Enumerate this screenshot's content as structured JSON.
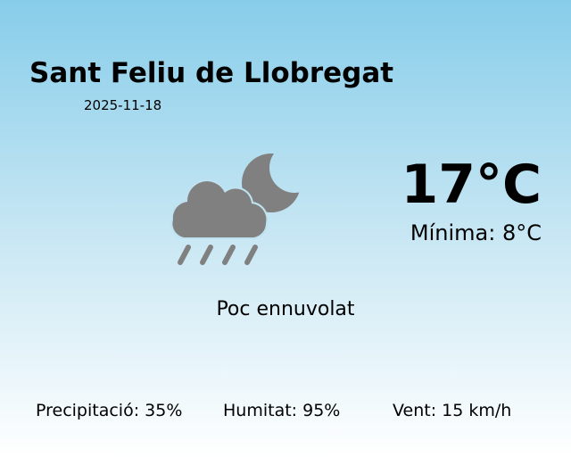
{
  "location": {
    "city": "Sant Feliu de Llobregat",
    "date": "2025-11-18"
  },
  "weather": {
    "icon": "cloud-rain-moon-icon",
    "icon_color": "#808080",
    "temperature": "17°C",
    "minimum": "Mínima: 8°C",
    "condition": "Poc ennuvolat"
  },
  "stats": {
    "precipitation": "Precipitació: 35%",
    "humidity": "Humitat: 95%",
    "wind": "Vent: 15 km/h"
  }
}
